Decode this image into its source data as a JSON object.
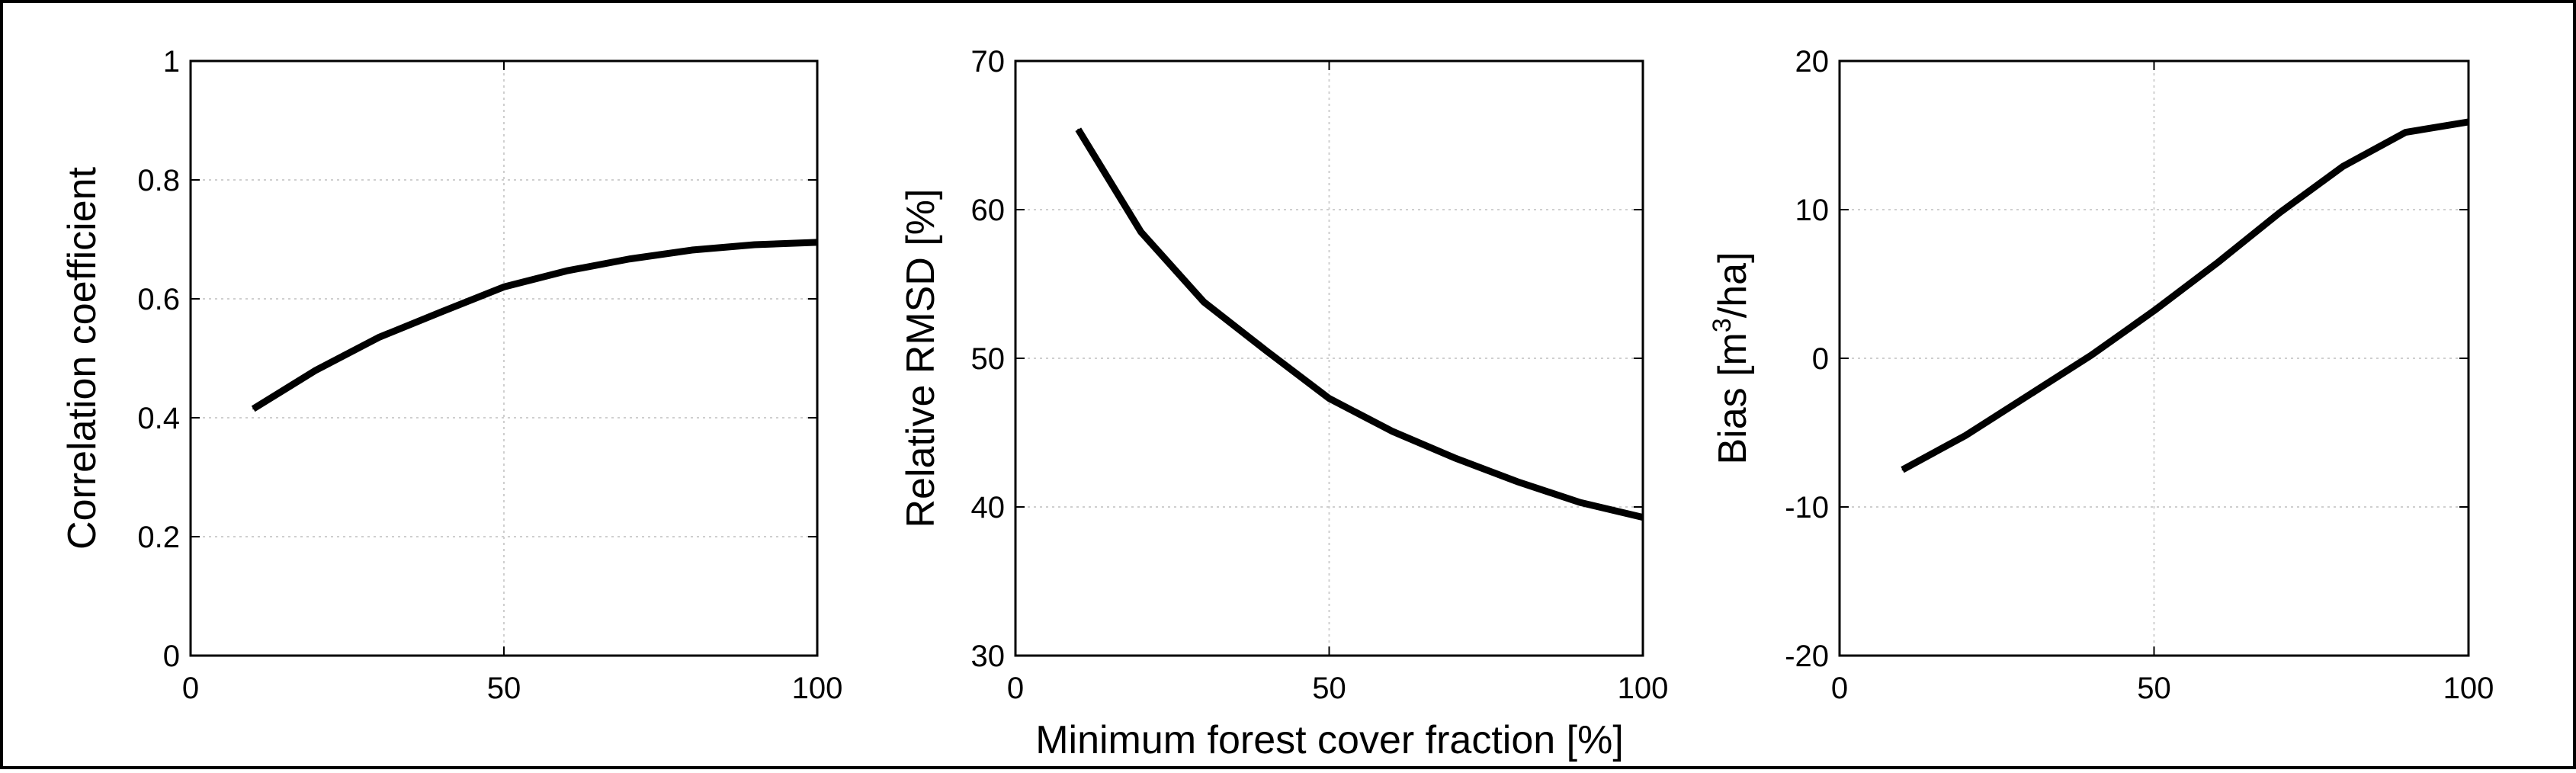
{
  "chart_data": [
    {
      "type": "line",
      "title": "",
      "xlabel": "",
      "ylabel": "Correlation coefficient",
      "xlim": [
        0,
        100
      ],
      "ylim": [
        0,
        1
      ],
      "xticks": [
        "0",
        "50",
        "100"
      ],
      "yticks": [
        "0",
        "0.2",
        "0.4",
        "0.6",
        "0.8",
        "1"
      ],
      "grid": true,
      "x": [
        10,
        20,
        30,
        40,
        50,
        60,
        70,
        80,
        90,
        100
      ],
      "series": [
        {
          "values": [
            0.415,
            0.48,
            0.535,
            0.578,
            0.62,
            0.647,
            0.667,
            0.682,
            0.691,
            0.695
          ]
        }
      ]
    },
    {
      "type": "line",
      "title": "",
      "xlabel": "Minimum forest cover fraction   [%]",
      "ylabel": "Relative RMSD   [%]",
      "xlim": [
        0,
        100
      ],
      "ylim": [
        30,
        70
      ],
      "xticks": [
        "0",
        "50",
        "100"
      ],
      "yticks": [
        "30",
        "40",
        "50",
        "60",
        "70"
      ],
      "grid": true,
      "x": [
        10,
        20,
        30,
        40,
        50,
        60,
        70,
        80,
        90,
        100
      ],
      "series": [
        {
          "values": [
            65.4,
            58.5,
            53.8,
            50.5,
            47.3,
            45.1,
            43.3,
            41.7,
            40.3,
            39.3
          ]
        }
      ]
    },
    {
      "type": "line",
      "title": "",
      "xlabel": "",
      "ylabel": "Bias   [m3/ha]",
      "ylabel_parts": {
        "pre": "Bias   [m",
        "sup": "3",
        "post": "/ha]"
      },
      "xlim": [
        0,
        100
      ],
      "ylim": [
        -20,
        20
      ],
      "xticks": [
        "0",
        "50",
        "100"
      ],
      "yticks": [
        "-20",
        "-10",
        "0",
        "10",
        "20"
      ],
      "grid": true,
      "x": [
        10,
        20,
        30,
        40,
        50,
        60,
        70,
        80,
        90,
        100
      ],
      "series": [
        {
          "values": [
            -7.5,
            -5.2,
            -2.5,
            0.2,
            3.2,
            6.4,
            9.8,
            12.9,
            15.2,
            15.9
          ]
        }
      ]
    }
  ]
}
